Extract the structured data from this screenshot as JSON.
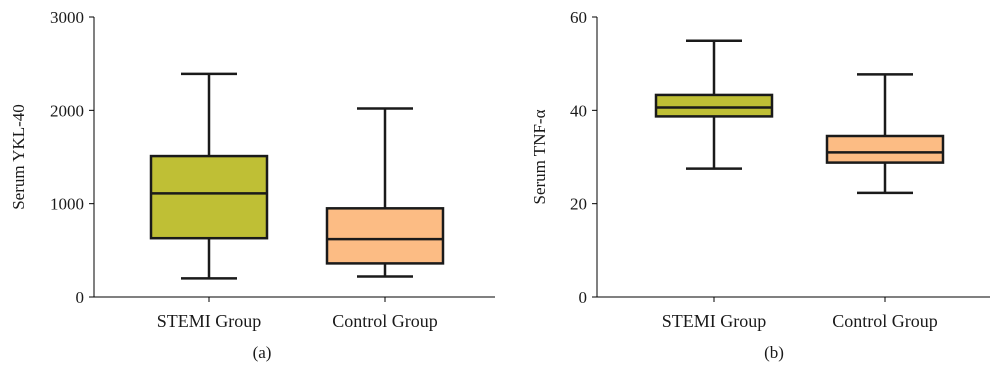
{
  "chart_data": [
    {
      "type": "box",
      "panel_label": "(a)",
      "ylabel": "Serum YKL-40",
      "ylim": [
        0,
        3000
      ],
      "yticks": [
        0,
        1000,
        2000,
        3000
      ],
      "ytick_labels": [
        "0",
        "1000",
        "2000",
        "3000"
      ],
      "categories": [
        "STEMI Group",
        "Control Group"
      ],
      "boxes": [
        {
          "category": "STEMI Group",
          "min": 200,
          "q1": 630,
          "median": 1110,
          "q3": 1510,
          "max": 2390,
          "color": "#bfbf35"
        },
        {
          "category": "Control Group",
          "min": 220,
          "q1": 360,
          "median": 620,
          "q3": 950,
          "max": 2020,
          "color": "#fcbc84"
        }
      ]
    },
    {
      "type": "box",
      "panel_label": "(b)",
      "ylabel": "Serum TNF-α",
      "ylim": [
        0,
        60
      ],
      "yticks": [
        0,
        20,
        40,
        60
      ],
      "ytick_labels": [
        "0",
        "20",
        "40",
        "60"
      ],
      "categories": [
        "STEMI Group",
        "Control Group"
      ],
      "boxes": [
        {
          "category": "STEMI Group",
          "min": 27.5,
          "q1": 38.7,
          "median": 40.6,
          "q3": 43.3,
          "max": 54.9,
          "color": "#bfbf35"
        },
        {
          "category": "Control Group",
          "min": 22.3,
          "q1": 28.8,
          "median": 31.0,
          "q3": 34.5,
          "max": 47.7,
          "color": "#fcbc84"
        }
      ]
    }
  ]
}
